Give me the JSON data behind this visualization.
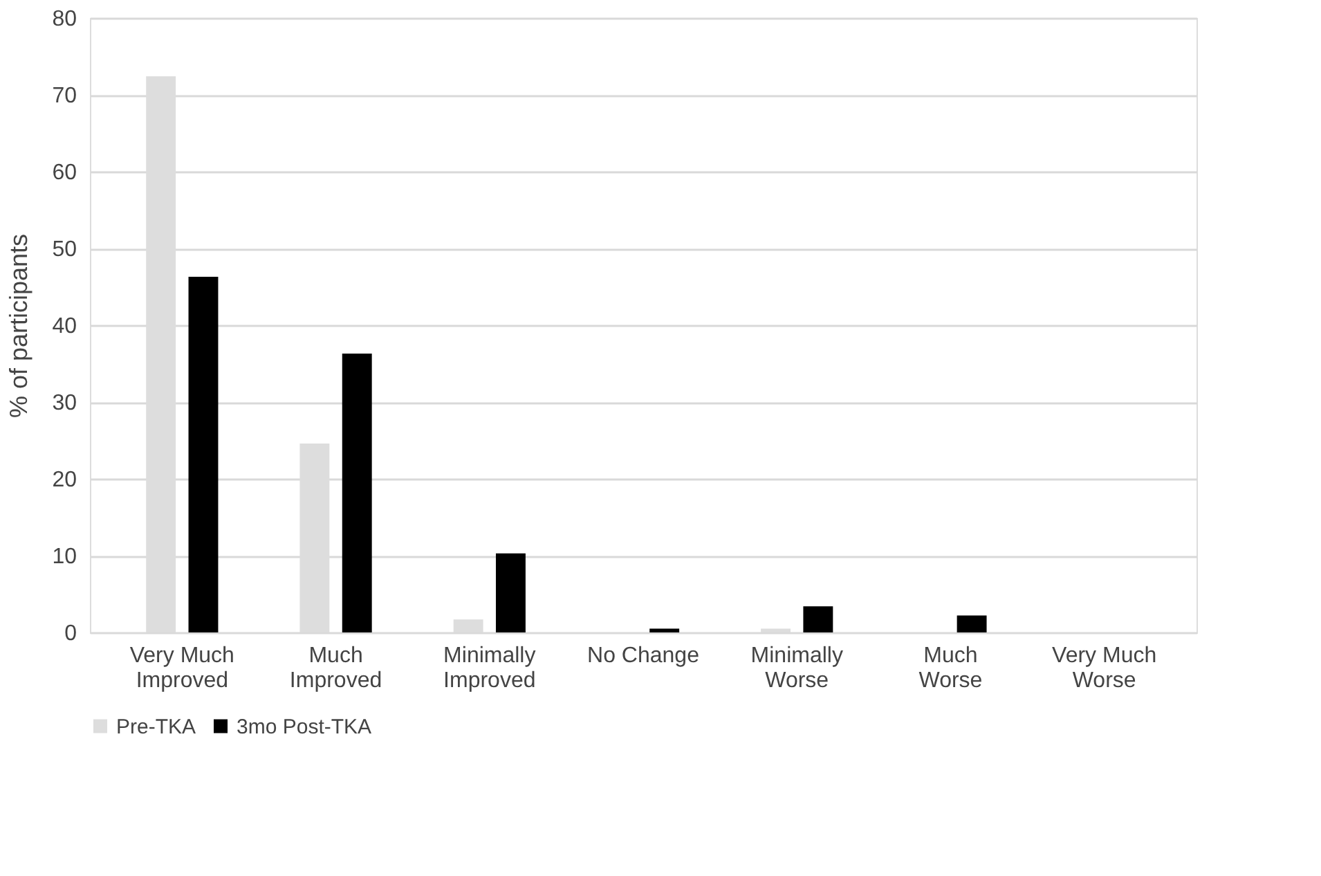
{
  "chart_data": {
    "type": "bar",
    "ylabel": "% of participants",
    "categories": [
      "Very Much\nImproved",
      "Much\nImproved",
      "Minimally\nImproved",
      "No Change",
      "Minimally\nWorse",
      "Much\nWorse",
      "Very Much\nWorse"
    ],
    "series": [
      {
        "name": "Pre-TKA",
        "color": "#dddddd",
        "values": [
          72.4,
          24.6,
          1.7,
          0,
          0.5,
          0,
          0
        ]
      },
      {
        "name": "3mo Post-TKA",
        "color": "#000000",
        "values": [
          46.3,
          36.3,
          10.3,
          0.5,
          3.4,
          2.2,
          0
        ]
      }
    ],
    "ylim": [
      0,
      80
    ],
    "yticks": [
      0,
      10,
      20,
      30,
      40,
      50,
      60,
      70,
      80
    ],
    "grid": "y",
    "legend": "bottom"
  }
}
